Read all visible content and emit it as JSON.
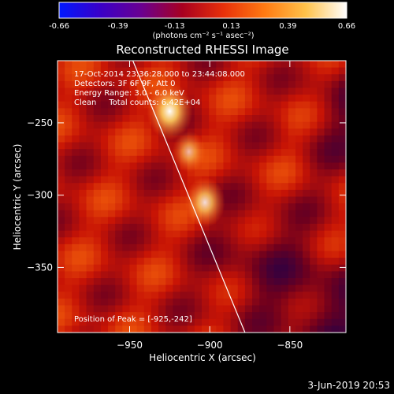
{
  "colorbar": {
    "tick_labels": [
      "-0.66",
      "-0.39",
      "-0.13",
      "0.13",
      "0.39",
      "0.66"
    ],
    "tick_values": [
      -0.66,
      -0.39,
      -0.13,
      0.13,
      0.39,
      0.66
    ],
    "units": "(photons cm⁻² s⁻¹ asec⁻²)",
    "range": [
      -0.66,
      0.66
    ],
    "colors": [
      "#0018ff",
      "#3a00c8",
      "#6a0090",
      "#a80020",
      "#e8300a",
      "#ff7a12",
      "#ffc24a",
      "#ffffff"
    ]
  },
  "chart_data": {
    "type": "heatmap",
    "title": "Reconstructed RHESSI Image",
    "xlabel": "Heliocentric X (arcsec)",
    "ylabel": "Heliocentric Y (arcsec)",
    "xlim": [
      -995,
      -815
    ],
    "ylim": [
      -395,
      -207
    ],
    "x_ticks": [
      -950,
      -900,
      -850
    ],
    "x_tick_labels": [
      "−950",
      "−900",
      "−850"
    ],
    "y_ticks": [
      -250,
      -300,
      -350
    ],
    "y_tick_labels": [
      "−250",
      "−300",
      "−350"
    ],
    "sources": [
      {
        "x": -925,
        "y": -242,
        "peak": 0.66
      },
      {
        "x": -903,
        "y": -305,
        "peak": 0.5
      },
      {
        "x": -913,
        "y": -270,
        "peak": 0.3
      }
    ],
    "limb_line": [
      [
        -948,
        -207
      ],
      [
        -878,
        -395
      ]
    ],
    "info_lines": [
      "17-Oct-2014 23:36:28.000 to 23:44:08.000",
      "Detectors: 3F 6F 9F, Att 0",
      "Energy Range: 3.0 - 6.0 keV",
      "Clean     Total counts: 6.42E+04"
    ],
    "peak_label": "Position of Peak = [-925,-242]"
  },
  "footer": {
    "date": "3-Jun-2019 20:53"
  }
}
